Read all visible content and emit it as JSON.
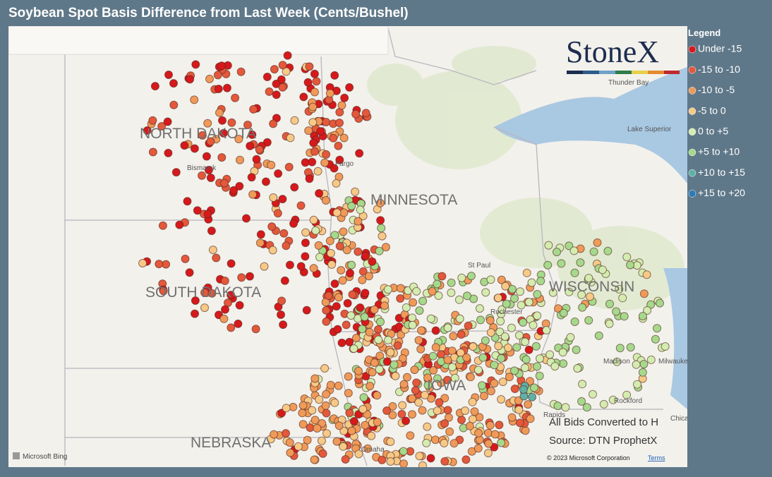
{
  "title": "Soybean Spot Basis Difference from Last Week (Cents/Bushel)",
  "logo": "StoneX",
  "legend": {
    "title": "Legend",
    "items": [
      {
        "label": "Under -15",
        "color": "#d7191c"
      },
      {
        "label": "-15 to -10",
        "color": "#e4583b"
      },
      {
        "label": "-10 to -5",
        "color": "#f09a59"
      },
      {
        "label": "-5 to 0",
        "color": "#f7c987"
      },
      {
        "label": "0 to +5",
        "color": "#d4ecb0"
      },
      {
        "label": "+5 to +10",
        "color": "#a6d98c"
      },
      {
        "label": "+10 to +15",
        "color": "#5fb0a5"
      },
      {
        "label": "+15 to +20",
        "color": "#2c7bb6"
      }
    ]
  },
  "map_labels": {
    "states": [
      "NORTH DAKOTA",
      "SOUTH DAKOTA",
      "MINNESOTA",
      "WISCONSIN",
      "NEBRASKA",
      "IOWA"
    ],
    "cities": [
      "Bismarck",
      "Fargo",
      "St Paul",
      "Rochester",
      "Madison",
      "Milwaukee",
      "Rockford",
      "Thunder Bay",
      "Lake Superior",
      "Omaha",
      "Rapids",
      "Chicago"
    ]
  },
  "notes": [
    "All Bids Converted to H",
    "Source: DTN ProphetX"
  ],
  "attribution": {
    "brand": "Microsoft Bing",
    "copyright": "© 2023 Microsoft Corporation",
    "terms": "Terms"
  }
}
